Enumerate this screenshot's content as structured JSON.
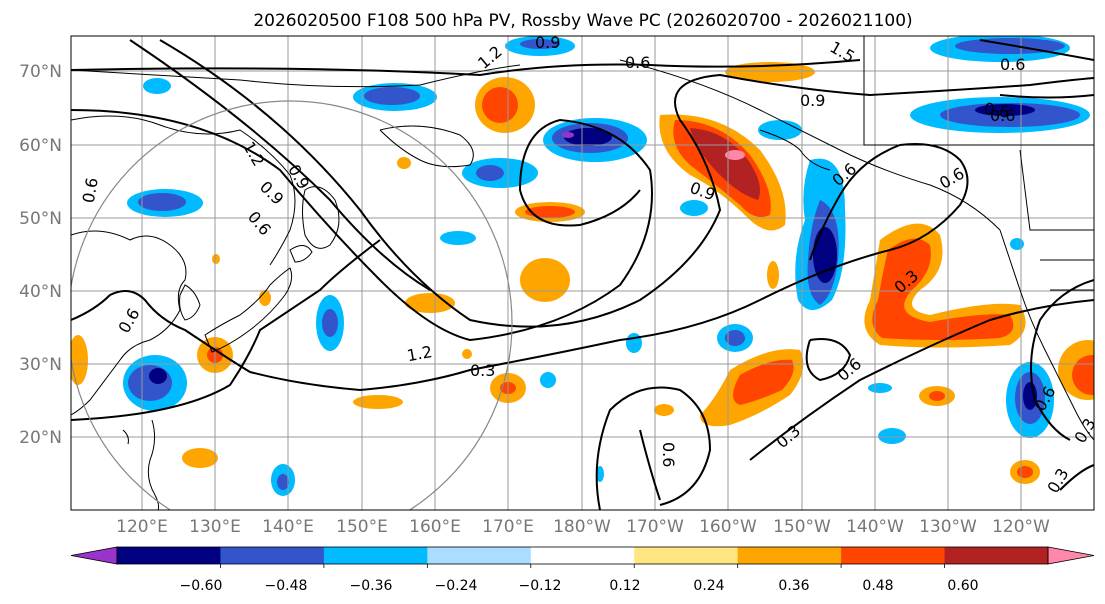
{
  "title": "2026020500 F108 500 hPa PV, Rossby Wave PC (2026020700 - 2026021100)",
  "lat_labels": [
    "70°N",
    "60°N",
    "50°N",
    "40°N",
    "30°N",
    "20°N"
  ],
  "lon_labels": [
    "120°E",
    "130°E",
    "140°E",
    "150°E",
    "160°E",
    "170°E",
    "180°W",
    "170°W",
    "160°W",
    "150°W",
    "140°W",
    "130°W",
    "120°W"
  ],
  "colorbar": {
    "ticks": [
      "−0.60",
      "−0.48",
      "−0.36",
      "−0.24",
      "−0.12",
      "0.12",
      "0.24",
      "0.36",
      "0.48",
      "0.60"
    ],
    "colors": [
      "#9933cc",
      "#000080",
      "#3355cc",
      "#00bbff",
      "#aaddff",
      "#ffffff",
      "#ffe680",
      "#ffa500",
      "#ff4500",
      "#b22222",
      "#ff88aa"
    ]
  },
  "contour_labels": [
    "0.6",
    "0.9",
    "1.5",
    "1.2",
    "0.9",
    "0.6",
    "0.6",
    "0.9",
    "0.6",
    "0.9",
    "1.2",
    "0.6",
    "0.6",
    "0.9",
    "0.6",
    "0.3",
    "0.6",
    "0.3",
    "0.6",
    "1.2",
    "0.3",
    "0.6",
    "0.6",
    "0.3",
    "0.3",
    "0.6"
  ],
  "colors": {
    "grid": "#999999",
    "coast": "#000000",
    "circle": "#888888",
    "contour": "#000000"
  }
}
